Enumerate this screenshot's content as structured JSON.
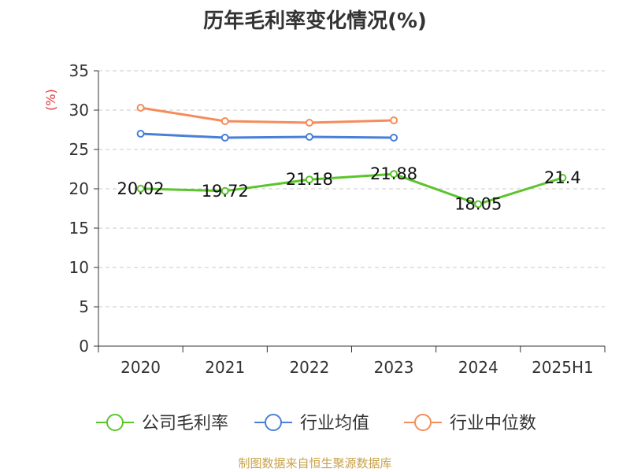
{
  "chart_data": {
    "type": "line",
    "title": "历年毛利率变化情况(%)",
    "ylabel": "(%)",
    "categories": [
      "2020",
      "2021",
      "2022",
      "2023",
      "2024",
      "2025H1"
    ],
    "ylim": [
      0,
      35
    ],
    "yticks": [
      0,
      5,
      10,
      15,
      20,
      25,
      30,
      35
    ],
    "grid": true,
    "legend_position": "bottom",
    "series": [
      {
        "name": "公司毛利率",
        "color": "#5cc42c",
        "values": [
          20.02,
          19.72,
          21.18,
          21.88,
          18.05,
          21.4
        ],
        "labels": [
          "20.02",
          "19.72",
          "21.18",
          "21.88",
          "18.05",
          "21.4"
        ]
      },
      {
        "name": "行业均值",
        "color": "#4a7fd8",
        "values": [
          27.0,
          26.5,
          26.6,
          26.5,
          null,
          null
        ]
      },
      {
        "name": "行业中位数",
        "color": "#f58c5a",
        "values": [
          30.3,
          28.6,
          28.4,
          28.7,
          null,
          null
        ]
      }
    ]
  },
  "footer": "制图数据来自恒生聚源数据库"
}
